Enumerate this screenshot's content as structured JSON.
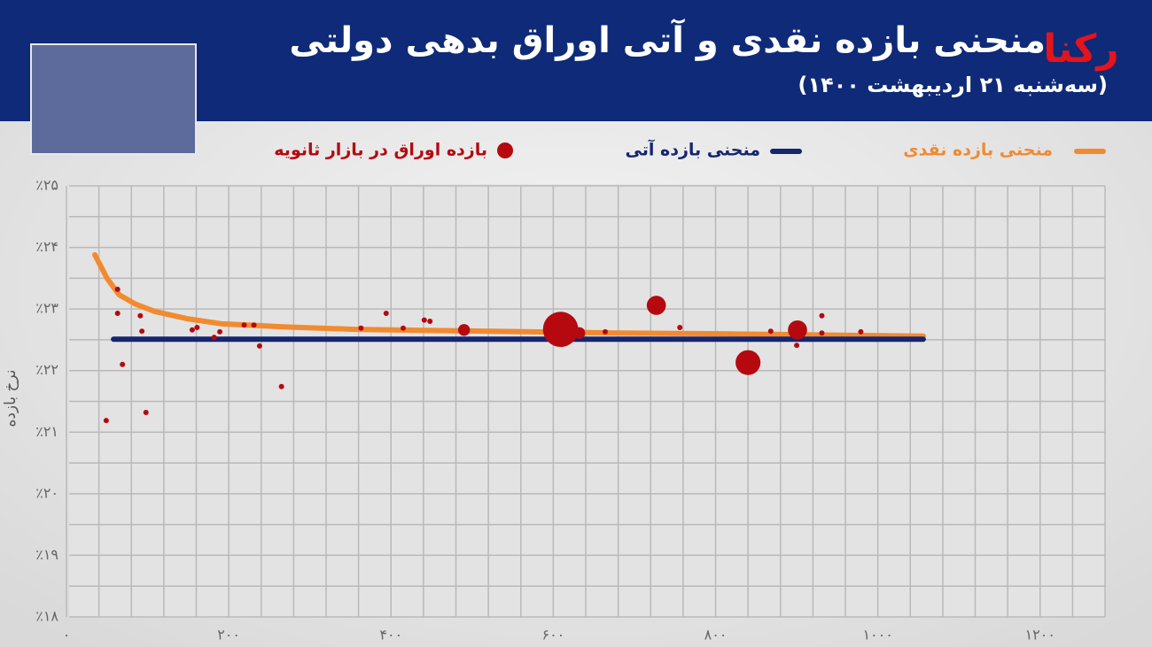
{
  "chart_data": {
    "type": "line",
    "title": "منحنی بازده نقدی و آتی اوراق بدهی دولتی",
    "subtitle": "(سه‌شنبه ۲۱ اردیبهشت ۱۴۰۰)",
    "logo": "رکنا",
    "ylabel": "نرخ بازده",
    "xlim": [
      0,
      1280
    ],
    "ylim": [
      18,
      25
    ],
    "xticks": [
      {
        "value": 0,
        "label": "٠"
      },
      {
        "value": 200,
        "label": "۲۰۰"
      },
      {
        "value": 400,
        "label": "۴۰۰"
      },
      {
        "value": 600,
        "label": "۶۰۰"
      },
      {
        "value": 800,
        "label": "۸۰۰"
      },
      {
        "value": 1000,
        "label": "۱۰۰۰"
      },
      {
        "value": 1200,
        "label": "۱۲۰۰"
      }
    ],
    "yticks": [
      {
        "value": 18,
        "label": "٪۱۸"
      },
      {
        "value": 19,
        "label": "٪۱۹"
      },
      {
        "value": 20,
        "label": "٪۲۰"
      },
      {
        "value": 21,
        "label": "٪۲۱"
      },
      {
        "value": 22,
        "label": "٪۲۲"
      },
      {
        "value": 23,
        "label": "٪۲۳"
      },
      {
        "value": 24,
        "label": "٪۲۴"
      },
      {
        "value": 25,
        "label": "٪۲۵"
      }
    ],
    "grid": true,
    "series": [
      {
        "name": "منحنی بازده نقدی",
        "type": "line",
        "color": "#f28a30",
        "x": [
          35,
          50,
          65,
          85,
          109,
          150,
          191,
          270,
          355,
          460,
          573,
          680,
          791,
          920,
          1056
        ],
        "values": [
          23.88,
          23.5,
          23.23,
          23.08,
          22.96,
          22.84,
          22.76,
          22.71,
          22.67,
          22.65,
          22.63,
          22.61,
          22.6,
          22.58,
          22.56
        ]
      },
      {
        "name": "منحنی بازده آتی",
        "type": "line",
        "color": "#15256e",
        "x": [
          58,
          1056
        ],
        "values": [
          22.51,
          22.51
        ]
      },
      {
        "name": "بازده اوراق در بازار ثانویه",
        "type": "scatter",
        "color": "#b5090f",
        "x": [
          49,
          63,
          63,
          69,
          91,
          93,
          98,
          155,
          161,
          182,
          189,
          219,
          231,
          238,
          265,
          363,
          394,
          415,
          441,
          448,
          490,
          609,
          632,
          664,
          727,
          756,
          840,
          868,
          901,
          900,
          931,
          931,
          979
        ],
        "values": [
          21.19,
          23.32,
          22.93,
          22.1,
          22.89,
          22.64,
          21.32,
          22.66,
          22.7,
          22.54,
          22.63,
          22.74,
          22.74,
          22.4,
          21.74,
          22.69,
          22.93,
          22.69,
          22.82,
          22.8,
          22.66,
          22.67,
          22.61,
          22.63,
          23.06,
          22.7,
          22.13,
          22.64,
          22.66,
          22.41,
          22.89,
          22.61,
          22.63
        ],
        "sizes": [
          1,
          1,
          1,
          1,
          1,
          1,
          1,
          1,
          1,
          1,
          1,
          1,
          1,
          1,
          1,
          1,
          1,
          1,
          1,
          1,
          5,
          44,
          5,
          1,
          13,
          1,
          22,
          1,
          13,
          1,
          1,
          1,
          1
        ]
      }
    ]
  }
}
